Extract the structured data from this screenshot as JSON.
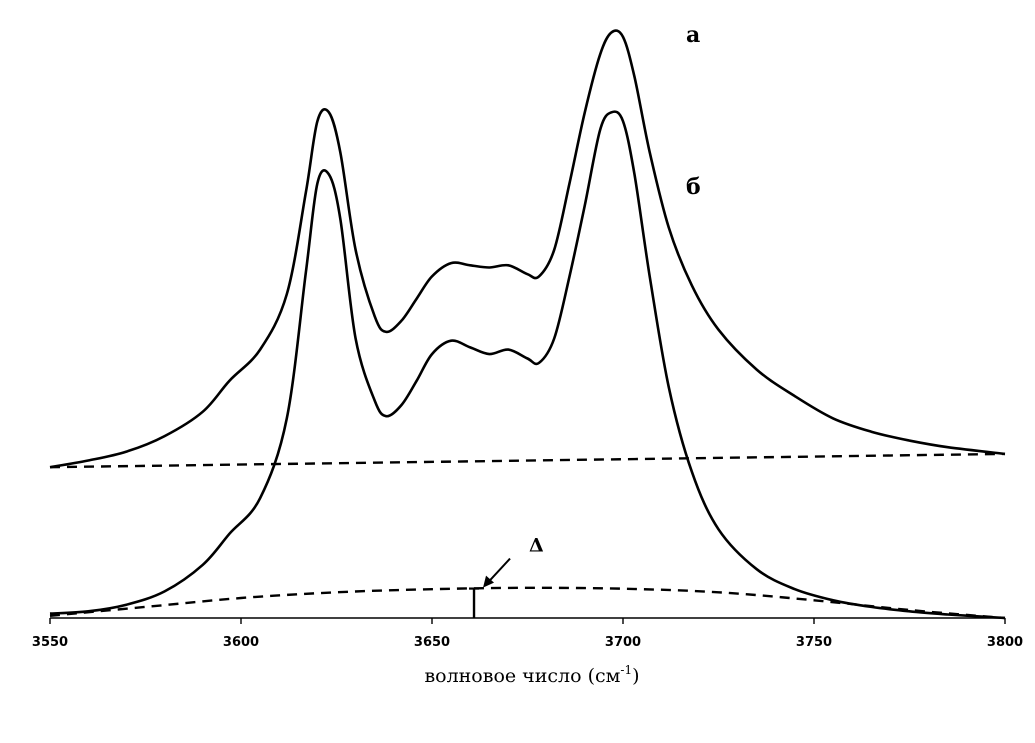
{
  "chart_data": {
    "type": "line",
    "xlabel": "волновое число (см",
    "xlabel_sup": "-1",
    "xlabel_end": ")",
    "ylabel": "",
    "xlim": [
      3550,
      3800
    ],
    "ylim": [
      0,
      1.33
    ],
    "x_ticks": [
      3550,
      3600,
      3650,
      3700,
      3750,
      3800
    ],
    "grid": false,
    "legend": "none",
    "annotation": {
      "label": "Δ",
      "x": 3661
    },
    "series": [
      {
        "name": "а",
        "style": "solid",
        "x": [
          3550,
          3560,
          3570,
          3580,
          3590,
          3597,
          3605,
          3612,
          3617,
          3620,
          3623,
          3626,
          3630,
          3635,
          3638,
          3642,
          3646,
          3650,
          3655,
          3660,
          3665,
          3670,
          3675,
          3678,
          3682,
          3686,
          3690,
          3694,
          3697,
          3700,
          3703,
          3707,
          3712,
          3718,
          3725,
          3735,
          3745,
          3755,
          3765,
          3775,
          3785,
          3800
        ],
        "y": [
          0.34,
          0.355,
          0.375,
          0.41,
          0.465,
          0.535,
          0.605,
          0.73,
          0.96,
          1.12,
          1.14,
          1.05,
          0.83,
          0.68,
          0.645,
          0.67,
          0.72,
          0.77,
          0.8,
          0.795,
          0.79,
          0.795,
          0.775,
          0.77,
          0.83,
          0.98,
          1.14,
          1.27,
          1.32,
          1.31,
          1.22,
          1.05,
          0.88,
          0.75,
          0.65,
          0.56,
          0.5,
          0.45,
          0.42,
          0.4,
          0.385,
          0.37
        ]
      },
      {
        "name": "а-baseline",
        "style": "dashed",
        "x": [
          3550,
          3800
        ],
        "y": [
          0.34,
          0.37
        ]
      },
      {
        "name": "б",
        "style": "solid",
        "x": [
          3550,
          3560,
          3570,
          3580,
          3590,
          3597,
          3605,
          3612,
          3617,
          3620,
          3623,
          3626,
          3630,
          3635,
          3638,
          3642,
          3646,
          3650,
          3655,
          3660,
          3665,
          3670,
          3675,
          3678,
          3682,
          3686,
          3690,
          3694,
          3697,
          3700,
          3703,
          3707,
          3712,
          3718,
          3725,
          3735,
          3745,
          3755,
          3765,
          3775,
          3785,
          3800
        ],
        "y": [
          0.01,
          0.015,
          0.03,
          0.06,
          0.12,
          0.19,
          0.27,
          0.45,
          0.78,
          0.98,
          1.0,
          0.9,
          0.63,
          0.49,
          0.455,
          0.48,
          0.535,
          0.595,
          0.625,
          0.61,
          0.595,
          0.605,
          0.585,
          0.575,
          0.63,
          0.77,
          0.93,
          1.1,
          1.14,
          1.12,
          1.0,
          0.77,
          0.52,
          0.33,
          0.2,
          0.11,
          0.065,
          0.04,
          0.025,
          0.015,
          0.008,
          0.0
        ]
      },
      {
        "name": "б-baseline",
        "style": "dashed",
        "x": [
          3550,
          3575,
          3600,
          3625,
          3650,
          3675,
          3700,
          3725,
          3750,
          3775,
          3800
        ],
        "y": [
          0.005,
          0.025,
          0.045,
          0.058,
          0.065,
          0.068,
          0.066,
          0.058,
          0.04,
          0.018,
          0.0
        ]
      }
    ]
  }
}
